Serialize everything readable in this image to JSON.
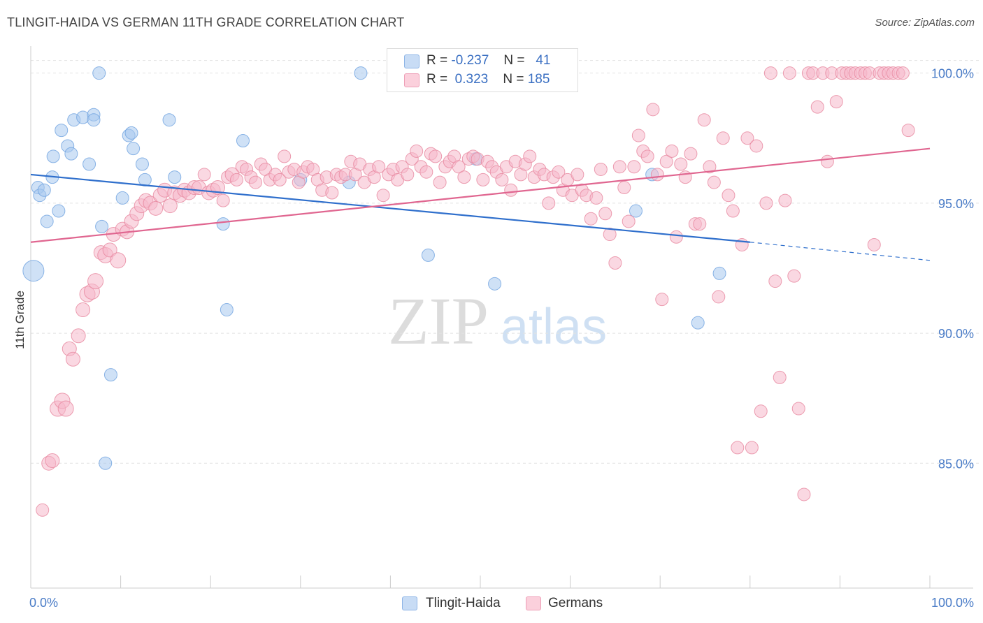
{
  "header": {
    "title": "TLINGIT-HAIDA VS GERMAN 11TH GRADE CORRELATION CHART",
    "source": "Source: ZipAtlas.com"
  },
  "watermark": {
    "zip": "ZIP",
    "atlas": "atlas"
  },
  "legend": {
    "rows": [
      {
        "r_label": "R =",
        "r_value": "-0.237",
        "n_label": "N =",
        "n_value": "41",
        "color": "#a8c8ef"
      },
      {
        "r_label": "R =",
        "r_value": "0.323",
        "n_label": "N =",
        "n_value": "185",
        "color": "#f6b8cb"
      }
    ]
  },
  "bottom_legend": {
    "items": [
      {
        "label": "Tlingit-Haida",
        "color": "#a8c8ef"
      },
      {
        "label": "Germans",
        "color": "#f6b8cb"
      }
    ]
  },
  "chart_data": {
    "type": "scatter",
    "title": "TLINGIT-HAIDA VS GERMAN 11TH GRADE CORRELATION CHART",
    "xlabel": "",
    "ylabel": "11th Grade",
    "xlim": [
      0,
      100
    ],
    "ylim": [
      80.2,
      101.2
    ],
    "x_tick_labels": [
      "0.0%",
      "100.0%"
    ],
    "y_ticks": [
      85,
      90,
      95,
      100
    ],
    "y_tick_labels": [
      "85.0%",
      "90.0%",
      "95.0%",
      "100.0%"
    ],
    "grid": true,
    "series": [
      {
        "name": "Tlingit-Haida",
        "color": "#6fa3e0",
        "fill": "#a8c8ef",
        "trend": {
          "x0": 0,
          "y0": 96.1,
          "x1": 80,
          "y1": 93.5,
          "dash_to_x": 100,
          "dash_to_y": 92.8,
          "color": "#2f6fcc"
        },
        "points": [
          [
            0.3,
            92.4,
            30
          ],
          [
            0.8,
            95.6,
            18
          ],
          [
            1.0,
            95.3,
            18
          ],
          [
            1.5,
            95.5,
            18
          ],
          [
            1.8,
            94.3,
            18
          ],
          [
            2.4,
            96.0,
            18
          ],
          [
            2.5,
            96.8,
            18
          ],
          [
            3.1,
            94.7,
            18
          ],
          [
            3.4,
            97.8,
            18
          ],
          [
            4.1,
            97.2,
            18
          ],
          [
            4.5,
            96.9,
            18
          ],
          [
            4.8,
            98.2,
            18
          ],
          [
            5.8,
            98.3,
            18
          ],
          [
            6.5,
            96.5,
            18
          ],
          [
            7.0,
            98.4,
            18
          ],
          [
            7.0,
            98.2,
            18
          ],
          [
            7.6,
            100.0,
            18
          ],
          [
            7.9,
            94.1,
            18
          ],
          [
            8.3,
            85.0,
            18
          ],
          [
            8.9,
            88.4,
            18
          ],
          [
            10.2,
            95.2,
            18
          ],
          [
            10.9,
            97.6,
            18
          ],
          [
            11.2,
            97.7,
            18
          ],
          [
            11.4,
            97.1,
            18
          ],
          [
            12.4,
            96.5,
            18
          ],
          [
            12.7,
            95.9,
            18
          ],
          [
            15.4,
            98.2,
            18
          ],
          [
            16.0,
            96.0,
            18
          ],
          [
            21.4,
            94.2,
            18
          ],
          [
            21.8,
            90.9,
            18
          ],
          [
            23.6,
            97.4,
            18
          ],
          [
            30.0,
            95.9,
            18
          ],
          [
            35.4,
            95.8,
            18
          ],
          [
            36.7,
            100.0,
            18
          ],
          [
            44.2,
            93.0,
            18
          ],
          [
            49.5,
            96.7,
            18
          ],
          [
            51.6,
            91.9,
            18
          ],
          [
            67.3,
            94.7,
            18
          ],
          [
            69.1,
            96.1,
            18
          ],
          [
            74.2,
            90.4,
            18
          ],
          [
            76.6,
            92.3,
            18
          ]
        ]
      },
      {
        "name": "Germans",
        "color": "#e7879f",
        "fill": "#f6b8cb",
        "trend": {
          "x0": 0,
          "y0": 93.5,
          "x1": 100,
          "y1": 97.1,
          "color": "#e06690"
        },
        "points": [
          [
            1.3,
            83.2,
            18
          ],
          [
            2.0,
            85.0,
            20
          ],
          [
            2.4,
            85.1,
            20
          ],
          [
            3.0,
            87.1,
            22
          ],
          [
            3.5,
            87.4,
            22
          ],
          [
            3.9,
            87.1,
            22
          ],
          [
            4.3,
            89.4,
            20
          ],
          [
            4.7,
            89.0,
            20
          ],
          [
            5.3,
            89.9,
            20
          ],
          [
            5.8,
            90.9,
            20
          ],
          [
            6.3,
            91.5,
            22
          ],
          [
            6.8,
            91.6,
            22
          ],
          [
            7.2,
            92.0,
            22
          ],
          [
            7.8,
            93.1,
            20
          ],
          [
            8.3,
            93.0,
            22
          ],
          [
            8.8,
            93.2,
            20
          ],
          [
            9.2,
            93.8,
            20
          ],
          [
            9.7,
            92.8,
            22
          ],
          [
            10.2,
            94.0,
            20
          ],
          [
            10.7,
            93.9,
            20
          ],
          [
            11.2,
            94.3,
            20
          ],
          [
            11.8,
            94.6,
            20
          ],
          [
            12.3,
            94.9,
            20
          ],
          [
            12.8,
            95.1,
            20
          ],
          [
            13.3,
            95.0,
            20
          ],
          [
            13.9,
            94.8,
            20
          ],
          [
            14.4,
            95.3,
            20
          ],
          [
            14.9,
            95.5,
            20
          ],
          [
            15.5,
            94.9,
            20
          ],
          [
            16.0,
            95.4,
            20
          ],
          [
            16.6,
            95.3,
            20
          ],
          [
            17.1,
            95.5,
            20
          ],
          [
            17.6,
            95.4,
            20
          ],
          [
            18.2,
            95.6,
            20
          ],
          [
            18.7,
            95.6,
            20
          ],
          [
            19.3,
            96.1,
            18
          ],
          [
            19.8,
            95.4,
            20
          ],
          [
            20.3,
            95.5,
            20
          ],
          [
            20.8,
            95.6,
            20
          ],
          [
            21.4,
            95.1,
            18
          ],
          [
            21.9,
            96.0,
            18
          ],
          [
            22.4,
            96.1,
            20
          ],
          [
            22.9,
            95.9,
            18
          ],
          [
            23.5,
            96.4,
            18
          ],
          [
            24.0,
            96.3,
            18
          ],
          [
            24.5,
            96.0,
            18
          ],
          [
            25.0,
            95.8,
            18
          ],
          [
            25.6,
            96.5,
            18
          ],
          [
            26.1,
            96.3,
            18
          ],
          [
            26.6,
            95.9,
            18
          ],
          [
            27.2,
            96.1,
            18
          ],
          [
            27.7,
            95.9,
            18
          ],
          [
            28.2,
            96.8,
            18
          ],
          [
            28.7,
            96.2,
            18
          ],
          [
            29.3,
            96.3,
            18
          ],
          [
            29.8,
            95.8,
            18
          ],
          [
            30.3,
            96.2,
            18
          ],
          [
            30.8,
            96.4,
            18
          ],
          [
            31.4,
            96.3,
            18
          ],
          [
            31.9,
            95.9,
            18
          ],
          [
            32.4,
            95.5,
            18
          ],
          [
            32.9,
            96.0,
            18
          ],
          [
            33.5,
            95.4,
            18
          ],
          [
            34.0,
            96.1,
            18
          ],
          [
            34.5,
            96.0,
            18
          ],
          [
            35.0,
            96.1,
            18
          ],
          [
            35.6,
            96.6,
            18
          ],
          [
            36.1,
            96.1,
            18
          ],
          [
            36.6,
            96.5,
            18
          ],
          [
            37.1,
            95.8,
            18
          ],
          [
            37.7,
            96.3,
            18
          ],
          [
            38.2,
            96.0,
            18
          ],
          [
            38.7,
            96.4,
            18
          ],
          [
            39.2,
            95.3,
            18
          ],
          [
            39.8,
            96.1,
            18
          ],
          [
            40.3,
            96.3,
            18
          ],
          [
            40.8,
            95.9,
            18
          ],
          [
            41.3,
            96.4,
            18
          ],
          [
            41.9,
            96.1,
            18
          ],
          [
            42.4,
            96.7,
            18
          ],
          [
            42.9,
            97.0,
            18
          ],
          [
            43.4,
            96.4,
            18
          ],
          [
            44.0,
            96.2,
            18
          ],
          [
            44.5,
            96.9,
            18
          ],
          [
            45.0,
            96.8,
            18
          ],
          [
            45.5,
            95.8,
            18
          ],
          [
            46.1,
            96.4,
            18
          ],
          [
            46.6,
            96.6,
            18
          ],
          [
            47.1,
            96.8,
            18
          ],
          [
            47.6,
            96.4,
            18
          ],
          [
            48.2,
            96.0,
            18
          ],
          [
            48.7,
            96.7,
            18
          ],
          [
            49.2,
            96.8,
            18
          ],
          [
            49.7,
            96.7,
            18
          ],
          [
            50.3,
            95.9,
            18
          ],
          [
            50.8,
            96.6,
            18
          ],
          [
            51.3,
            96.4,
            18
          ],
          [
            51.8,
            96.2,
            18
          ],
          [
            52.4,
            95.9,
            18
          ],
          [
            52.9,
            96.4,
            18
          ],
          [
            53.4,
            95.5,
            18
          ],
          [
            53.9,
            96.6,
            18
          ],
          [
            54.5,
            96.1,
            18
          ],
          [
            55.0,
            96.5,
            18
          ],
          [
            55.5,
            96.8,
            18
          ],
          [
            56.0,
            96.0,
            18
          ],
          [
            56.6,
            96.3,
            18
          ],
          [
            57.1,
            96.1,
            18
          ],
          [
            57.6,
            95.0,
            18
          ],
          [
            58.1,
            96.0,
            18
          ],
          [
            58.7,
            96.2,
            18
          ],
          [
            59.2,
            95.5,
            18
          ],
          [
            59.7,
            95.9,
            18
          ],
          [
            60.2,
            95.3,
            18
          ],
          [
            60.8,
            96.1,
            18
          ],
          [
            61.3,
            95.5,
            18
          ],
          [
            61.8,
            95.3,
            18
          ],
          [
            62.3,
            94.4,
            18
          ],
          [
            62.9,
            95.2,
            18
          ],
          [
            63.4,
            96.3,
            18
          ],
          [
            63.9,
            94.6,
            18
          ],
          [
            64.4,
            93.8,
            18
          ],
          [
            65.0,
            92.7,
            18
          ],
          [
            65.5,
            96.4,
            18
          ],
          [
            66.0,
            95.6,
            18
          ],
          [
            66.5,
            94.3,
            18
          ],
          [
            67.1,
            96.4,
            18
          ],
          [
            67.6,
            97.6,
            18
          ],
          [
            68.1,
            97.0,
            18
          ],
          [
            68.6,
            96.8,
            18
          ],
          [
            69.2,
            98.6,
            18
          ],
          [
            69.7,
            96.1,
            18
          ],
          [
            70.2,
            91.3,
            18
          ],
          [
            70.7,
            96.6,
            18
          ],
          [
            71.3,
            97.0,
            18
          ],
          [
            71.8,
            93.7,
            18
          ],
          [
            72.3,
            96.5,
            18
          ],
          [
            72.8,
            96.0,
            18
          ],
          [
            73.4,
            96.9,
            18
          ],
          [
            73.9,
            94.2,
            18
          ],
          [
            74.4,
            94.2,
            18
          ],
          [
            74.9,
            98.2,
            18
          ],
          [
            75.5,
            96.4,
            18
          ],
          [
            76.0,
            95.8,
            18
          ],
          [
            76.5,
            91.4,
            18
          ],
          [
            77.0,
            97.5,
            18
          ],
          [
            77.6,
            95.3,
            18
          ],
          [
            78.1,
            94.7,
            18
          ],
          [
            78.6,
            85.6,
            18
          ],
          [
            79.1,
            93.4,
            18
          ],
          [
            79.7,
            97.5,
            18
          ],
          [
            80.2,
            85.6,
            18
          ],
          [
            80.7,
            97.2,
            18
          ],
          [
            81.2,
            87.0,
            18
          ],
          [
            81.8,
            95.0,
            18
          ],
          [
            82.3,
            100.0,
            18
          ],
          [
            82.8,
            92.0,
            18
          ],
          [
            83.3,
            88.3,
            18
          ],
          [
            83.9,
            95.1,
            18
          ],
          [
            84.4,
            100.0,
            18
          ],
          [
            84.9,
            92.2,
            18
          ],
          [
            85.4,
            87.1,
            18
          ],
          [
            86.0,
            83.8,
            18
          ],
          [
            86.5,
            100.0,
            18
          ],
          [
            87.0,
            100.0,
            18
          ],
          [
            87.5,
            98.7,
            18
          ],
          [
            88.1,
            100.0,
            18
          ],
          [
            88.6,
            96.6,
            18
          ],
          [
            89.1,
            100.0,
            18
          ],
          [
            89.6,
            98.9,
            18
          ],
          [
            90.2,
            100.0,
            18
          ],
          [
            90.7,
            100.0,
            18
          ],
          [
            91.2,
            100.0,
            18
          ],
          [
            91.7,
            100.0,
            18
          ],
          [
            92.3,
            100.0,
            18
          ],
          [
            92.8,
            100.0,
            18
          ],
          [
            93.3,
            100.0,
            18
          ],
          [
            93.8,
            93.4,
            18
          ],
          [
            94.4,
            100.0,
            18
          ],
          [
            94.9,
            100.0,
            18
          ],
          [
            95.4,
            100.0,
            18
          ],
          [
            95.9,
            100.0,
            18
          ],
          [
            96.5,
            100.0,
            18
          ],
          [
            97.0,
            100.0,
            18
          ],
          [
            97.6,
            97.8,
            18
          ]
        ]
      }
    ]
  }
}
